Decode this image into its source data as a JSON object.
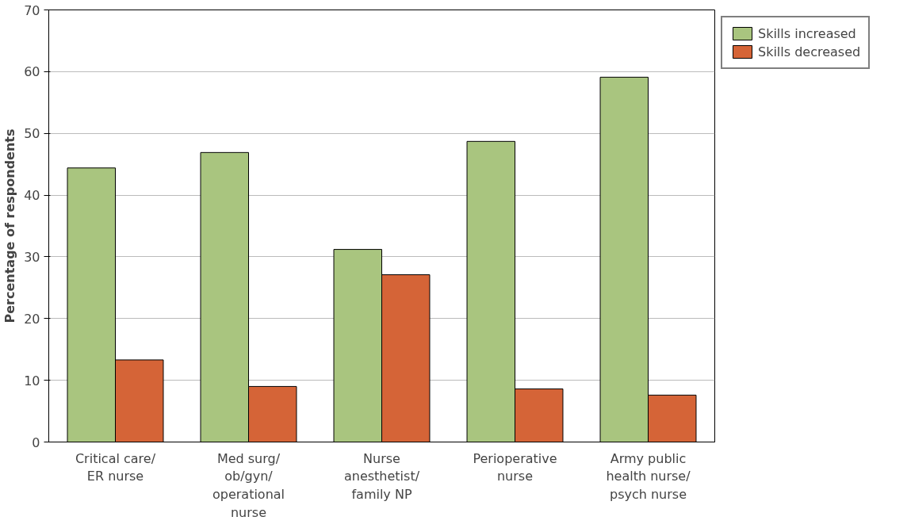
{
  "chart_data": {
    "type": "bar",
    "ylabel": "Percentage of respondents",
    "categories": [
      "Critical care/ ER nurse",
      "Med surg/ ob/gyn/ operational nurse",
      "Nurse anesthetist/ family NP",
      "Perioperative nurse",
      "Army public health nurse/ psych nurse"
    ],
    "series": [
      {
        "name": "Skills increased",
        "color": "#a9c57f",
        "values": [
          44.4,
          46.9,
          31.2,
          48.7,
          59.1
        ]
      },
      {
        "name": "Skills decreased",
        "color": "#d56437",
        "values": [
          13.3,
          9.0,
          27.1,
          8.6,
          7.6
        ]
      }
    ],
    "ylim": [
      0,
      70
    ],
    "yticks": [
      0,
      10,
      20,
      30,
      40,
      50,
      60,
      70
    ],
    "grid": "y",
    "legend": "top right"
  }
}
